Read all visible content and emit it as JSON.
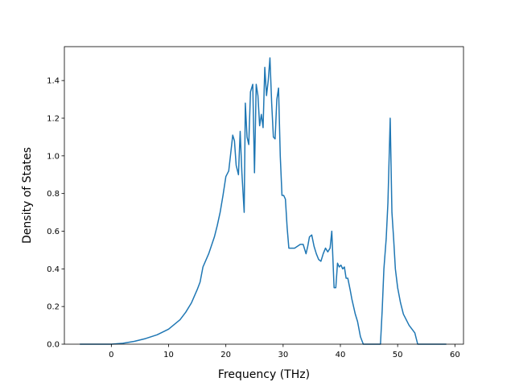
{
  "chart_data": {
    "type": "line",
    "xlabel": "Frequency (THz)",
    "ylabel": "Density of States",
    "xlim": [
      -8.2,
      61.5
    ],
    "ylim": [
      0,
      1.58
    ],
    "xticks": [
      0,
      10,
      20,
      30,
      40,
      50,
      60
    ],
    "yticks": [
      0.0,
      0.2,
      0.4,
      0.6,
      0.8,
      1.0,
      1.2,
      1.4
    ],
    "grid": false,
    "line_color": "#1f77b4",
    "series": [
      {
        "x": [
          -5.5,
          0,
          2,
          4,
          6,
          8,
          10,
          12,
          13,
          14,
          15,
          15.5,
          16,
          17,
          18,
          18.5,
          19,
          19.5,
          20,
          20.5,
          20.8,
          21.2,
          21.5,
          21.8,
          22.2,
          22.5,
          22.8,
          23.2,
          23.4,
          23.7,
          24,
          24.3,
          24.7,
          25,
          25.3,
          25.6,
          25.9,
          26.2,
          26.5,
          26.8,
          27.1,
          27.4,
          27.7,
          28,
          28.3,
          28.6,
          28.9,
          29.2,
          29.5,
          29.8,
          30.1,
          30.4,
          30.7,
          31.0,
          31.3,
          31.6,
          32,
          32.5,
          33,
          33.5,
          34,
          34.3,
          34.6,
          35,
          35.4,
          35.8,
          36.2,
          36.6,
          37,
          37.4,
          37.8,
          38.2,
          38.5,
          38.9,
          39.2,
          39.5,
          39.8,
          40.1,
          40.4,
          40.7,
          41,
          41.3,
          41.7,
          42,
          42.3,
          42.6,
          43,
          43.5,
          44,
          44.3,
          44.7,
          45,
          46,
          47,
          47.3,
          47.6,
          48,
          48.3,
          48.7,
          49,
          49.3,
          49.6,
          50,
          50.5,
          51,
          52,
          53,
          53.5,
          54,
          56,
          58.5
        ],
        "y": [
          0.0,
          0.0,
          0.005,
          0.015,
          0.03,
          0.05,
          0.08,
          0.13,
          0.17,
          0.22,
          0.29,
          0.33,
          0.41,
          0.48,
          0.57,
          0.63,
          0.7,
          0.79,
          0.89,
          0.92,
          1.0,
          1.11,
          1.08,
          0.95,
          0.9,
          1.13,
          0.91,
          0.7,
          1.28,
          1.1,
          1.06,
          1.34,
          1.38,
          0.91,
          1.38,
          1.32,
          1.16,
          1.22,
          1.15,
          1.47,
          1.32,
          1.4,
          1.52,
          1.28,
          1.1,
          1.09,
          1.3,
          1.36,
          1.0,
          0.79,
          0.79,
          0.77,
          0.62,
          0.51,
          0.51,
          0.51,
          0.51,
          0.52,
          0.53,
          0.53,
          0.48,
          0.52,
          0.57,
          0.58,
          0.52,
          0.48,
          0.45,
          0.44,
          0.48,
          0.51,
          0.49,
          0.51,
          0.6,
          0.3,
          0.3,
          0.43,
          0.41,
          0.42,
          0.4,
          0.41,
          0.35,
          0.35,
          0.29,
          0.24,
          0.2,
          0.16,
          0.12,
          0.04,
          0.0,
          0.0,
          0.0,
          0.0,
          0.0,
          0.0,
          0.18,
          0.4,
          0.56,
          0.75,
          1.2,
          0.7,
          0.56,
          0.4,
          0.3,
          0.22,
          0.16,
          0.1,
          0.06,
          0.0,
          0.0,
          0.0,
          0.0
        ]
      }
    ]
  }
}
